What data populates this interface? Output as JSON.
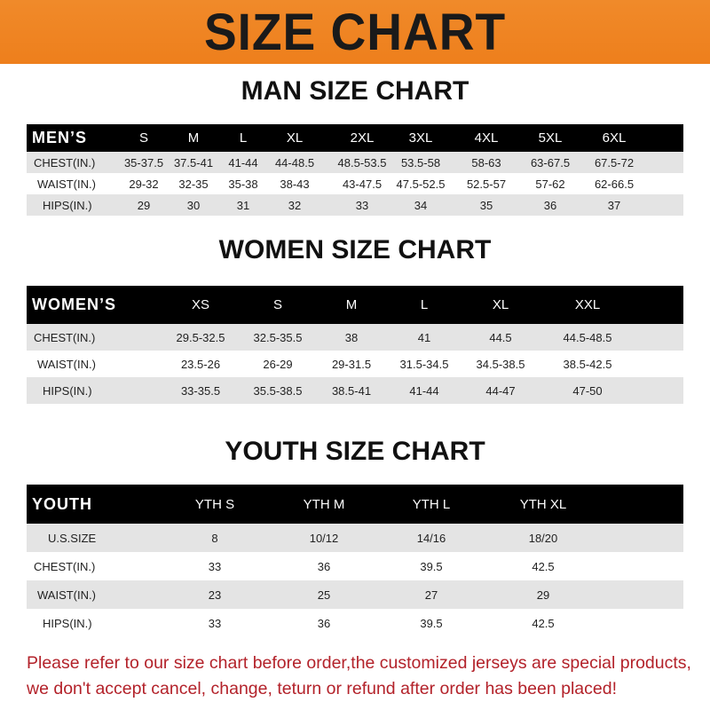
{
  "banner": {
    "title": "SIZE CHART",
    "color": "#ee801e"
  },
  "men": {
    "title": "MAN SIZE CHART",
    "header": "MEN’S",
    "sizes": [
      "S",
      "M",
      "L",
      "XL",
      "2XL",
      "3XL",
      "4XL",
      "5XL",
      "6XL"
    ],
    "rows": [
      {
        "label": "CHEST(IN.)",
        "values": [
          "35-37.5",
          "37.5-41",
          "41-44",
          "44-48.5",
          "48.5-53.5",
          "53.5-58",
          "58-63",
          "63-67.5",
          "67.5-72"
        ]
      },
      {
        "label": "WAIST(IN.)",
        "values": [
          "29-32",
          "32-35",
          "35-38",
          "38-43",
          "43-47.5",
          "47.5-52.5",
          "52.5-57",
          "57-62",
          "62-66.5"
        ]
      },
      {
        "label": "HIPS(IN.)",
        "values": [
          "29",
          "30",
          "31",
          "32",
          "33",
          "34",
          "35",
          "36",
          "37"
        ]
      }
    ]
  },
  "women": {
    "title": "WOMEN SIZE CHART",
    "header": "WOMEN’S",
    "sizes": [
      "XS",
      "S",
      "M",
      "L",
      "XL",
      "XXL"
    ],
    "rows": [
      {
        "label": "CHEST(IN.)",
        "values": [
          "29.5-32.5",
          "32.5-35.5",
          "38",
          "41",
          "44.5",
          "44.5-48.5"
        ]
      },
      {
        "label": "WAIST(IN.)",
        "values": [
          "23.5-26",
          "26-29",
          "29-31.5",
          "31.5-34.5",
          "34.5-38.5",
          "38.5-42.5"
        ]
      },
      {
        "label": "HIPS(IN.)",
        "values": [
          "33-35.5",
          "35.5-38.5",
          "38.5-41",
          "41-44",
          "44-47",
          "47-50"
        ]
      }
    ]
  },
  "youth": {
    "title": "YOUTH SIZE CHART",
    "header": "YOUTH",
    "sizes": [
      "YTH S",
      "YTH M",
      "YTH L",
      "YTH XL"
    ],
    "rows": [
      {
        "label": "U.S.SIZE",
        "values": [
          "8",
          "10/12",
          "14/16",
          "18/20"
        ]
      },
      {
        "label": "CHEST(IN.)",
        "values": [
          "33",
          "36",
          "39.5",
          "42.5"
        ]
      },
      {
        "label": "WAIST(IN.)",
        "values": [
          "23",
          "25",
          "27",
          "29"
        ]
      },
      {
        "label": "HIPS(IN.)",
        "values": [
          "33",
          "36",
          "39.5",
          "42.5"
        ]
      }
    ]
  },
  "notice": {
    "line1": "Please refer to our size chart before order,the customized jerseys are special products,",
    "line2": "we don't accept cancel, change, teturn or refund after order has been placed!",
    "color": "#b3222a"
  }
}
